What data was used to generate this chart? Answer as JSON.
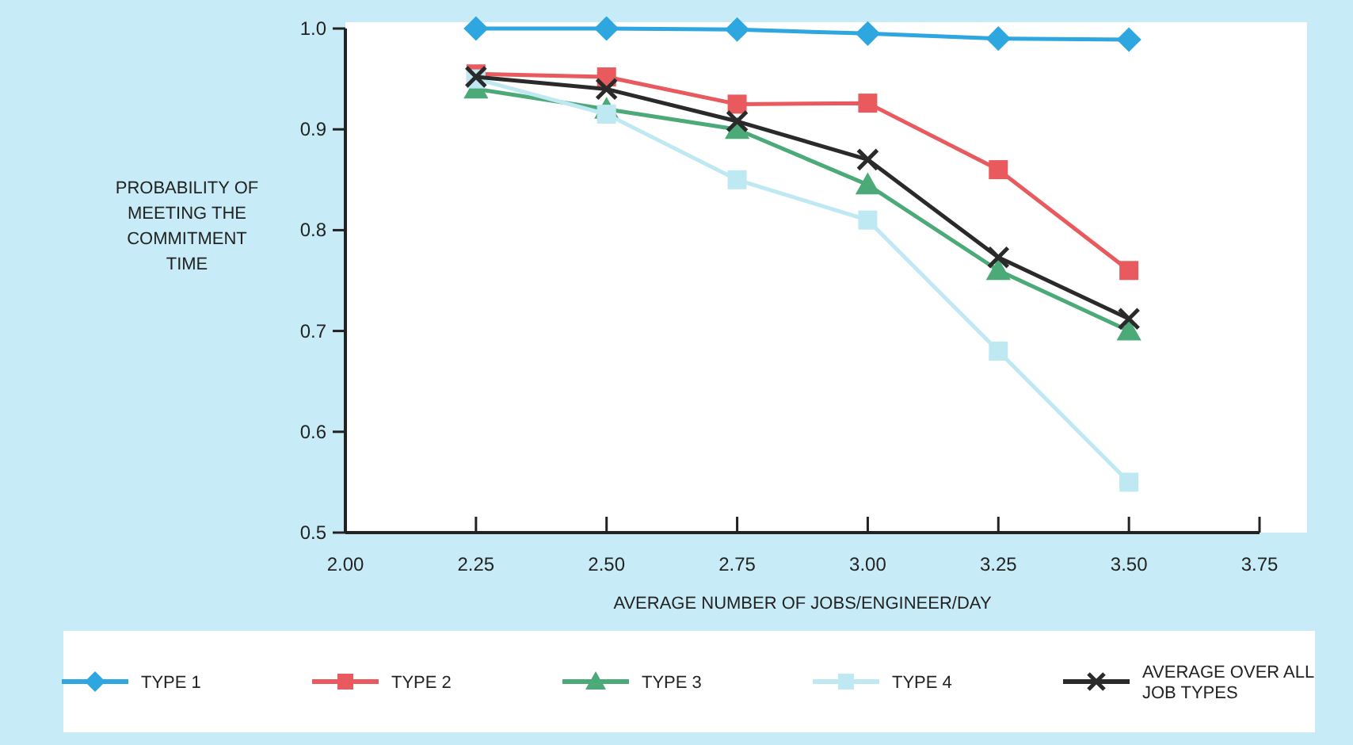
{
  "chart_data": {
    "type": "line",
    "xlabel": "AVERAGE NUMBER OF JOBS/ENGINEER/DAY",
    "ylabel": "PROBABILITY OF MEETING THE COMMITMENT TIME",
    "x": [
      2.25,
      2.5,
      2.75,
      3.0,
      3.25,
      3.5
    ],
    "xlim": [
      2.0,
      3.75
    ],
    "xticks": [
      {
        "value": 2.0,
        "label": "2.00"
      },
      {
        "value": 2.25,
        "label": "2.25"
      },
      {
        "value": 2.5,
        "label": "2.50"
      },
      {
        "value": 2.75,
        "label": "2.75"
      },
      {
        "value": 3.0,
        "label": "3.00"
      },
      {
        "value": 3.25,
        "label": "3.25"
      },
      {
        "value": 3.5,
        "label": "3.50"
      },
      {
        "value": 3.75,
        "label": "3.75"
      }
    ],
    "ylim": [
      0.5,
      1.0
    ],
    "yticks": [
      0.5,
      0.6,
      0.7,
      0.8,
      0.9,
      {
        "value": 1.0,
        "label": "1.0"
      }
    ],
    "grid": false,
    "legend": "bottom",
    "line_style": "solid",
    "series": [
      {
        "name": "TYPE 1",
        "color": "#2ea6e0",
        "marker": "diamond",
        "values": [
          1.0,
          1.0,
          0.999,
          0.995,
          0.99,
          0.989
        ]
      },
      {
        "name": "TYPE 2",
        "color": "#e85a5e",
        "marker": "square",
        "values": [
          0.955,
          0.952,
          0.925,
          0.926,
          0.86,
          0.76
        ]
      },
      {
        "name": "TYPE 3",
        "color": "#4caa78",
        "marker": "triangle",
        "values": [
          0.94,
          0.92,
          0.9,
          0.845,
          0.76,
          0.7
        ]
      },
      {
        "name": "TYPE 4",
        "color": "#bfe9f2",
        "marker": "square",
        "values": [
          0.95,
          0.915,
          0.85,
          0.81,
          0.68,
          0.55
        ]
      },
      {
        "name": "AVERAGE OVER ALL JOB TYPES",
        "color": "#2a2a2a",
        "marker": "cross",
        "values": [
          0.952,
          0.94,
          0.908,
          0.87,
          0.773,
          0.712
        ]
      }
    ]
  }
}
